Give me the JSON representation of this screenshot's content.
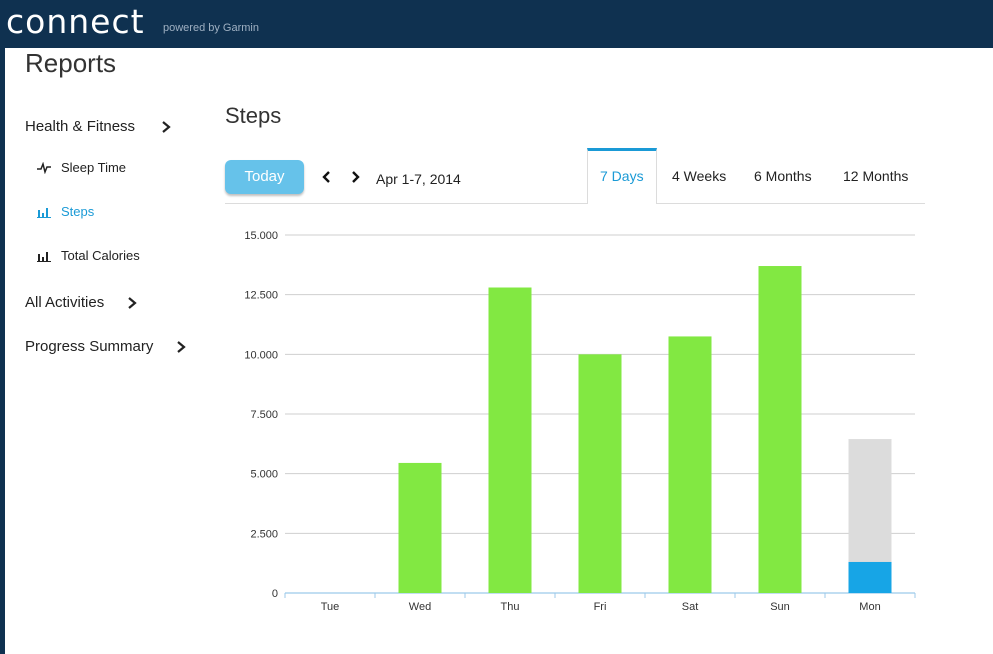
{
  "header": {
    "logo": "connect",
    "powered": "powered by Garmin"
  },
  "page_title": "Reports",
  "sidebar": {
    "sections": [
      {
        "label": "Health & Fitness",
        "icon": "chevron-right-icon"
      },
      {
        "label": "All Activities",
        "icon": "chevron-right-icon"
      },
      {
        "label": "Progress Summary",
        "icon": "chevron-right-icon"
      }
    ],
    "items": [
      {
        "label": "Sleep Time",
        "icon": "pulse-icon"
      },
      {
        "label": "Steps",
        "icon": "bar-chart-icon",
        "active": true
      },
      {
        "label": "Total Calories",
        "icon": "bar-chart-icon"
      }
    ]
  },
  "main": {
    "title": "Steps",
    "today_label": "Today",
    "date_range": "Apr 1-7, 2014",
    "tabs": [
      {
        "label": "7 Days",
        "active": true
      },
      {
        "label": "4 Weeks"
      },
      {
        "label": "6 Months"
      },
      {
        "label": "12 Months"
      }
    ]
  },
  "colors": {
    "topbar": "#0f3150",
    "accent": "#1a9ad6",
    "bar": "#82e842",
    "goal": "#dcdcdc",
    "today_bar": "#17a5e6"
  },
  "chart_data": {
    "type": "bar",
    "categories": [
      "Tue",
      "Wed",
      "Thu",
      "Fri",
      "Sat",
      "Sun",
      "Mon"
    ],
    "values": [
      0,
      5450,
      12800,
      10000,
      10750,
      13700,
      1300
    ],
    "goal_remaining": [
      null,
      null,
      null,
      null,
      null,
      null,
      6450
    ],
    "yticks": [
      "15.000",
      "12.500",
      "10.000",
      "7.500",
      "5.000",
      "2.500",
      "0"
    ],
    "ylim": [
      0,
      15000
    ],
    "grid": true
  }
}
